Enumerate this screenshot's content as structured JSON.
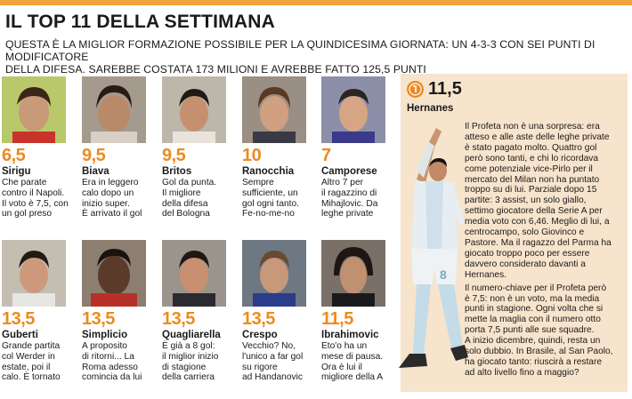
{
  "header": {
    "title": "IL TOP 11 DELLA SETTIMANA",
    "subtitle_line1": "QUESTA È LA MIGLIOR FORMAZIONE POSSIBILE PER LA QUINDICESIMA GIORNATA: UN 4-3-3 CON SEI PUNTI DI MODIFICATORE",
    "subtitle_line2": "DELLA DIFESA. SAREBBE COSTATA 173 MILIONI E AVREBBE FATTO 125,5 PUNTI"
  },
  "colors": {
    "accent": "#ef8a1e",
    "panel": "#f7e4cc",
    "bar": "#f0a23c"
  },
  "players": [
    {
      "score": "6,5",
      "name": "Sirigu",
      "desc": [
        "Che parate",
        "contro il Napoli.",
        "Il voto è 7,5, con",
        "un gol preso"
      ]
    },
    {
      "score": "9,5",
      "name": "Biava",
      "desc": [
        "Era in leggero",
        "calo dopo un",
        "inizio super.",
        "È arrivato il gol"
      ]
    },
    {
      "score": "9,5",
      "name": "Britos",
      "desc": [
        "Gol da punta.",
        "Il migliore",
        "della difesa",
        "del Bologna"
      ]
    },
    {
      "score": "10",
      "name": "Ranocchia",
      "desc": [
        "Sempre",
        "sufficiente, un",
        "gol ogni tanto.",
        "Fe-no-me-no"
      ]
    },
    {
      "score": "7",
      "name": "Camporese",
      "desc": [
        "Altro 7 per",
        "il ragazzino di",
        "Mihajlovic. Da",
        "leghe private"
      ]
    },
    {
      "score": "13,5",
      "name": "Guberti",
      "desc": [
        "Grande partita",
        "col Werder in",
        "estate, poi il",
        "calo. È tornato"
      ]
    },
    {
      "score": "13,5",
      "name": "Simplicio",
      "desc": [
        "A proposito",
        "di ritorni... La",
        "Roma adesso",
        "comincia da lui"
      ]
    },
    {
      "score": "13,5",
      "name": "Quagliarella",
      "desc": [
        "È già a 8 gol:",
        "il miglior inizio",
        "di stagione",
        "della carriera"
      ]
    },
    {
      "score": "13,5",
      "name": "Crespo",
      "desc": [
        "Vecchio? No,",
        "l'unico a far gol",
        "su rigore",
        "ad Handanovic"
      ]
    },
    {
      "score": "11,5",
      "name": "Ibrahimovic",
      "desc": [
        "Eto'o ha un",
        "mese di pausa.",
        "Ora è lui il",
        "migliore della A"
      ]
    }
  ],
  "star": {
    "score": "11,5",
    "name": "Hernanes",
    "icon": "star-badge-icon",
    "paragraph1": [
      "Il Profeta non è una sorpresa: era",
      "atteso e alle aste delle leghe private",
      "è stato pagato molto. Quattro gol",
      "però sono tanti, e chi lo ricordava",
      "come potenziale vice-Pirlo per il",
      "mercato del Milan non ha puntato",
      "troppo su di lui. Parziale dopo 15",
      "partite: 3 assist, un solo giallo,",
      "settimo giocatore della Serie A per",
      "media voto con 6,46. Meglio di lui, a",
      "centrocampo, solo Giovinco e",
      "Pastore. Ma il ragazzo del Parma ha",
      "giocato troppo poco per essere",
      "davvero considerato davanti a",
      "Hernanes."
    ],
    "paragraph2": [
      "Il numero-chiave per il Profeta però",
      "è 7,5: non è un voto, ma la media",
      "punti in stagione. Ogni volta che si",
      "mette la maglia con il numero otto",
      "porta 7,5 punti alle sue squadre.",
      "A inizio dicembre, quindi, resta un",
      "solo dubbio. In Brasile, al San Paolo,",
      "ha giocato tanto: riuscirà a restare",
      "ad alto livello fino a maggio?"
    ]
  }
}
